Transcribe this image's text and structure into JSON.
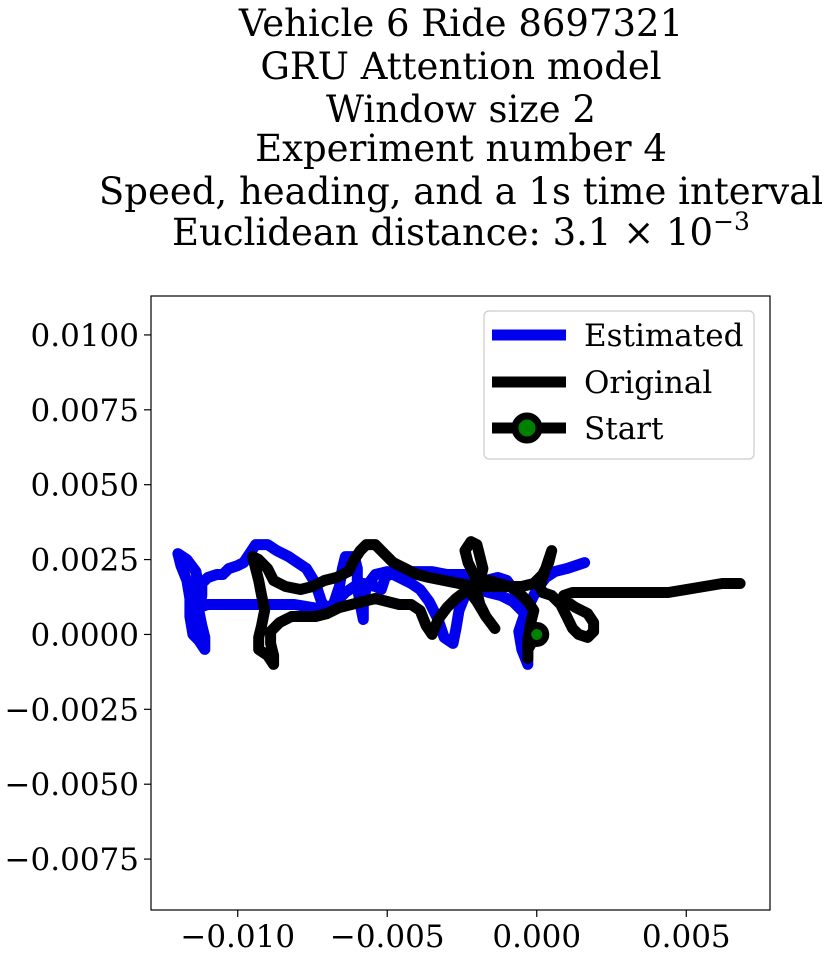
{
  "chart_data": {
    "type": "line",
    "title_lines": [
      "Vehicle 6 Ride 8697321",
      "GRU Attention model",
      "Window size 2",
      "Experiment number 4",
      "Speed, heading, and a 1s time interval"
    ],
    "distance_label": "Euclidean distance: ",
    "distance_mantissa": "3.1",
    "distance_exponent": "−3",
    "xlim": [
      -0.0129,
      0.0078
    ],
    "ylim": [
      -0.0092,
      0.0113
    ],
    "x_ticks": [
      -0.01,
      -0.005,
      0.0,
      0.005
    ],
    "x_tick_labels": [
      "−0.010",
      "−0.005",
      "0.000",
      "0.005"
    ],
    "y_ticks": [
      0.01,
      0.0075,
      0.005,
      0.0025,
      0.0,
      -0.0025,
      -0.005,
      -0.0075
    ],
    "y_tick_labels": [
      "0.0100",
      "0.0075",
      "0.0050",
      "0.0025",
      "0.0000",
      "−0.0025",
      "−0.0050",
      "−0.0075"
    ],
    "grid": false,
    "legend_position": "top-right",
    "series": [
      {
        "name": "Estimated",
        "color": "#0000ee",
        "points": [
          [
            0.0,
            0.0
          ],
          [
            -0.0003,
            -0.0003
          ],
          [
            -0.0003,
            -0.001
          ],
          [
            -0.0005,
            -0.0005
          ],
          [
            -0.0006,
            0.0001
          ],
          [
            -0.0004,
            0.0007
          ],
          [
            -0.0008,
            0.0011
          ],
          [
            -0.0012,
            0.0013
          ],
          [
            -0.0016,
            0.0014
          ],
          [
            -0.0019,
            0.0015
          ],
          [
            -0.002,
            0.0017
          ],
          [
            -0.002,
            0.0019
          ],
          [
            -0.0022,
            0.002
          ],
          [
            -0.0026,
            0.002
          ],
          [
            -0.003,
            0.002
          ],
          [
            -0.0035,
            0.0021
          ],
          [
            -0.004,
            0.0021
          ],
          [
            -0.0045,
            0.0021
          ],
          [
            -0.0049,
            0.002
          ],
          [
            -0.0051,
            0.0019
          ],
          [
            -0.0051,
            0.0018
          ],
          [
            -0.0052,
            0.0015
          ],
          [
            -0.0054,
            0.0016
          ],
          [
            -0.0058,
            0.0017
          ],
          [
            -0.0061,
            0.0016
          ],
          [
            -0.0064,
            0.0014
          ],
          [
            -0.0067,
            0.0011
          ],
          [
            -0.0071,
            0.0008
          ],
          [
            -0.0075,
            0.0009
          ],
          [
            -0.0081,
            0.001
          ],
          [
            -0.0087,
            0.001
          ],
          [
            -0.0094,
            0.001
          ],
          [
            -0.01,
            0.001
          ],
          [
            -0.0105,
            0.001
          ],
          [
            -0.011,
            0.001
          ],
          [
            -0.0113,
            0.0009
          ],
          [
            -0.0113,
            0.0012
          ],
          [
            -0.0113,
            0.0016
          ],
          [
            -0.0114,
            0.0021
          ],
          [
            -0.0117,
            0.0025
          ],
          [
            -0.012,
            0.0027
          ],
          [
            -0.0119,
            0.0023
          ],
          [
            -0.0117,
            0.0018
          ],
          [
            -0.0116,
            0.0012
          ],
          [
            -0.0116,
            0.0006
          ],
          [
            -0.0115,
            0.0
          ],
          [
            -0.0113,
            -0.0002
          ],
          [
            -0.0111,
            -0.0005
          ],
          [
            -0.0111,
            -0.0001
          ],
          [
            -0.0112,
            0.0003
          ],
          [
            -0.0113,
            0.0008
          ],
          [
            -0.0112,
            0.0013
          ],
          [
            -0.0112,
            0.0017
          ],
          [
            -0.011,
            0.0019
          ],
          [
            -0.0107,
            0.002
          ],
          [
            -0.0105,
            0.002
          ],
          [
            -0.0103,
            0.0022
          ],
          [
            -0.01,
            0.0023
          ],
          [
            -0.0098,
            0.0024
          ],
          [
            -0.0096,
            0.0027
          ],
          [
            -0.0094,
            0.003
          ],
          [
            -0.009,
            0.003
          ],
          [
            -0.0087,
            0.0028
          ],
          [
            -0.0083,
            0.0026
          ],
          [
            -0.008,
            0.0024
          ],
          [
            -0.0077,
            0.0022
          ],
          [
            -0.0074,
            0.0017
          ],
          [
            -0.0072,
            0.0011
          ],
          [
            -0.007,
            0.0008
          ],
          [
            -0.0068,
            0.001
          ],
          [
            -0.0066,
            0.0016
          ],
          [
            -0.0065,
            0.0022
          ],
          [
            -0.0064,
            0.0026
          ],
          [
            -0.0061,
            0.0026
          ],
          [
            -0.006,
            0.0022
          ],
          [
            -0.006,
            0.0016
          ],
          [
            -0.0059,
            0.001
          ],
          [
            -0.0058,
            0.0005
          ],
          [
            -0.0058,
            0.001
          ],
          [
            -0.0057,
            0.0016
          ],
          [
            -0.0054,
            0.002
          ],
          [
            -0.005,
            0.0021
          ],
          [
            -0.0046,
            0.0019
          ],
          [
            -0.0042,
            0.0017
          ],
          [
            -0.0039,
            0.0015
          ],
          [
            -0.0036,
            0.0011
          ],
          [
            -0.0033,
            0.0005
          ],
          [
            -0.0031,
            -0.0001
          ],
          [
            -0.0028,
            -0.0003
          ],
          [
            -0.0027,
            0.0002
          ],
          [
            -0.0026,
            0.0008
          ],
          [
            -0.0024,
            0.0013
          ],
          [
            -0.0021,
            0.0016
          ],
          [
            -0.0017,
            0.0018
          ],
          [
            -0.0013,
            0.0019
          ],
          [
            -0.001,
            0.0018
          ],
          [
            -0.0007,
            0.0014
          ],
          [
            -0.0005,
            0.001
          ],
          [
            -0.0002,
            0.0011
          ],
          [
            0.0,
            0.0015
          ],
          [
            0.0003,
            0.0019
          ],
          [
            0.0006,
            0.0021
          ],
          [
            0.001,
            0.0022
          ],
          [
            0.0016,
            0.0024
          ]
        ]
      },
      {
        "name": "Original",
        "color": "#000000",
        "points": [
          [
            0.0,
            0.0
          ],
          [
            -0.0003,
            -0.0005
          ],
          [
            -0.0003,
            -0.0008
          ],
          [
            -0.0003,
            -0.0002
          ],
          [
            -0.0002,
            0.0004
          ],
          [
            -0.0001,
            0.0008
          ],
          [
            -0.0003,
            0.0011
          ],
          [
            -0.0006,
            0.0014
          ],
          [
            -0.0009,
            0.0016
          ],
          [
            -0.0013,
            0.0017
          ],
          [
            -0.0016,
            0.0018
          ],
          [
            -0.0019,
            0.0016
          ],
          [
            -0.0021,
            0.002
          ],
          [
            -0.0023,
            0.0024
          ],
          [
            -0.0024,
            0.0028
          ],
          [
            -0.0022,
            0.0031
          ],
          [
            -0.002,
            0.003
          ],
          [
            -0.0019,
            0.0026
          ],
          [
            -0.0018,
            0.0022
          ],
          [
            -0.0019,
            0.0018
          ],
          [
            -0.002,
            0.0014
          ],
          [
            -0.0019,
            0.001
          ],
          [
            -0.0017,
            0.0006
          ],
          [
            -0.0014,
            0.0002
          ],
          [
            -0.0017,
            0.0006
          ],
          [
            -0.002,
            0.0011
          ],
          [
            -0.0023,
            0.0015
          ],
          [
            -0.0027,
            0.0012
          ],
          [
            -0.003,
            0.0009
          ],
          [
            -0.0033,
            0.0005
          ],
          [
            -0.0035,
            0.0
          ],
          [
            -0.0037,
            0.0003
          ],
          [
            -0.0039,
            0.0008
          ],
          [
            -0.0042,
            0.001
          ],
          [
            -0.0046,
            0.001
          ],
          [
            -0.005,
            0.0011
          ],
          [
            -0.0054,
            0.0012
          ],
          [
            -0.0058,
            0.0011
          ],
          [
            -0.0062,
            0.001
          ],
          [
            -0.0066,
            0.0009
          ],
          [
            -0.007,
            0.0007
          ],
          [
            -0.0074,
            0.0006
          ],
          [
            -0.0078,
            0.0006
          ],
          [
            -0.0082,
            0.0006
          ],
          [
            -0.0086,
            0.0004
          ],
          [
            -0.0089,
            0.0001
          ],
          [
            -0.0089,
            -0.0003
          ],
          [
            -0.0088,
            -0.0007
          ],
          [
            -0.0088,
            -0.001
          ],
          [
            -0.009,
            -0.0007
          ],
          [
            -0.0093,
            -0.0005
          ],
          [
            -0.0093,
            -0.0001
          ],
          [
            -0.0092,
            0.0003
          ],
          [
            -0.0091,
            0.0008
          ],
          [
            -0.0092,
            0.0013
          ],
          [
            -0.0093,
            0.0018
          ],
          [
            -0.0094,
            0.0022
          ],
          [
            -0.0095,
            0.0026
          ],
          [
            -0.0093,
            0.0025
          ],
          [
            -0.009,
            0.0022
          ],
          [
            -0.0088,
            0.0018
          ],
          [
            -0.0084,
            0.0016
          ],
          [
            -0.0079,
            0.0015
          ],
          [
            -0.0075,
            0.0016
          ],
          [
            -0.0071,
            0.0018
          ],
          [
            -0.0067,
            0.0019
          ],
          [
            -0.0063,
            0.0021
          ],
          [
            -0.0061,
            0.0025
          ],
          [
            -0.0059,
            0.0028
          ],
          [
            -0.0057,
            0.003
          ],
          [
            -0.0054,
            0.003
          ],
          [
            -0.0051,
            0.0027
          ],
          [
            -0.0048,
            0.0024
          ],
          [
            -0.0044,
            0.0022
          ],
          [
            -0.004,
            0.002
          ],
          [
            -0.0036,
            0.0019
          ],
          [
            -0.0031,
            0.0018
          ],
          [
            -0.0026,
            0.0017
          ],
          [
            -0.002,
            0.0016
          ],
          [
            -0.0014,
            0.0016
          ],
          [
            -0.0009,
            0.0016
          ],
          [
            -0.0005,
            0.0016
          ],
          [
            -0.0001,
            0.0017
          ],
          [
            0.0002,
            0.002
          ],
          [
            0.0004,
            0.0024
          ],
          [
            0.0005,
            0.0028
          ],
          [
            0.0003,
            0.0022
          ],
          [
            0.0001,
            0.0016
          ],
          [
            0.0002,
            0.0014
          ],
          [
            0.0005,
            0.0013
          ],
          [
            0.0008,
            0.001
          ],
          [
            0.001,
            0.0006
          ],
          [
            0.0012,
            0.0002
          ],
          [
            0.0014,
            0.0
          ],
          [
            0.0017,
            -0.0001
          ],
          [
            0.0019,
            0.0001
          ],
          [
            0.0019,
            0.0004
          ],
          [
            0.0017,
            0.0007
          ],
          [
            0.0013,
            0.0009
          ],
          [
            0.001,
            0.0011
          ],
          [
            0.0009,
            0.0013
          ],
          [
            0.0012,
            0.0014
          ],
          [
            0.0017,
            0.0014
          ],
          [
            0.0023,
            0.0014
          ],
          [
            0.003,
            0.0014
          ],
          [
            0.0037,
            0.0014
          ],
          [
            0.0044,
            0.0014
          ],
          [
            0.005,
            0.0015
          ],
          [
            0.0056,
            0.0016
          ],
          [
            0.0062,
            0.0017
          ],
          [
            0.0068,
            0.0017
          ]
        ]
      }
    ],
    "start_marker": {
      "name": "Start",
      "x": 0.0,
      "y": 0.0,
      "face_color": "#008000",
      "edge_color": "#000000"
    }
  }
}
